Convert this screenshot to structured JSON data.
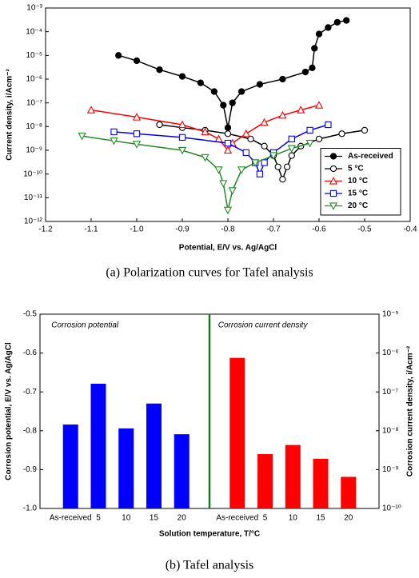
{
  "chart_data": [
    {
      "type": "scatter",
      "caption": "(a)  Polarization curves for Tafel analysis",
      "x_label": "Potential, E/V vs. Ag/AgCl",
      "y_label": "Current density, i/Acm⁻²",
      "xlim": [
        -1.2,
        -0.4
      ],
      "xticks": [
        -1.2,
        -1.1,
        {
          "value": -1.0,
          "label": "-1.0"
        },
        -0.9,
        -0.8,
        -0.7,
        -0.6,
        -0.5,
        -0.4
      ],
      "ylim": [
        1e-12,
        0.001
      ],
      "yscale": "log",
      "yticks": [
        {
          "value": 0.001,
          "label": "10⁻³"
        },
        {
          "value": 0.0001,
          "label": "10⁻⁴"
        },
        {
          "value": 1e-05,
          "label": "10⁻⁵"
        },
        {
          "value": 1e-06,
          "label": "10⁻⁶"
        },
        {
          "value": 1e-07,
          "label": "10⁻⁷"
        },
        {
          "value": 1e-08,
          "label": "10⁻⁸"
        },
        {
          "value": 1e-09,
          "label": "10⁻⁹"
        },
        {
          "value": 1e-10,
          "label": "10⁻¹⁰"
        },
        {
          "value": 1e-11,
          "label": "10⁻¹¹"
        },
        {
          "value": 1e-12,
          "label": "10⁻¹²"
        }
      ],
      "legend": "lower right",
      "series": [
        {
          "name": "As-received",
          "color": "#000000",
          "marker": "circle-filled",
          "x": [
            -1.04,
            -1.0,
            -0.95,
            -0.9,
            -0.86,
            -0.83,
            -0.81,
            -0.8,
            -0.79,
            -0.77,
            -0.73,
            -0.68,
            -0.63,
            -0.615,
            -0.61,
            -0.6,
            -0.58,
            -0.56,
            -0.54
          ],
          "values": [
            1e-05,
            6e-06,
            2.5e-06,
            1.3e-06,
            7e-07,
            3e-07,
            8e-08,
            9e-09,
            1e-07,
            3e-07,
            6e-07,
            1e-06,
            2e-06,
            3e-06,
            2e-05,
            8e-05,
            0.00015,
            0.00025,
            0.0003
          ]
        },
        {
          "name": "5 °C",
          "color": "#000000",
          "marker": "circle",
          "x": [
            -0.95,
            -0.9,
            -0.85,
            -0.8,
            -0.75,
            -0.72,
            -0.7,
            -0.69,
            -0.68,
            -0.67,
            -0.66,
            -0.64,
            -0.6,
            -0.55,
            -0.5
          ],
          "values": [
            1.2e-08,
            9e-09,
            7e-09,
            5e-09,
            3e-09,
            1.5e-09,
            6e-10,
            2e-10,
            6e-11,
            2e-10,
            6e-10,
            1.5e-09,
            3e-09,
            5e-09,
            7e-09
          ]
        },
        {
          "name": "10 °C",
          "color": "#ff0000",
          "marker": "triangle",
          "x": [
            -1.1,
            -1.0,
            -0.9,
            -0.85,
            -0.82,
            -0.8,
            -0.79,
            -0.76,
            -0.72,
            -0.68,
            -0.64,
            -0.6
          ],
          "values": [
            5e-08,
            2.5e-08,
            1.2e-08,
            6e-09,
            3e-09,
            1e-09,
            2e-09,
            5e-09,
            1.5e-08,
            3e-08,
            5e-08,
            8e-08
          ]
        },
        {
          "name": "15 °C",
          "color": "#0000ff",
          "marker": "square",
          "x": [
            -1.05,
            -1.0,
            -0.9,
            -0.8,
            -0.76,
            -0.74,
            -0.73,
            -0.72,
            -0.7,
            -0.66,
            -0.62,
            -0.58
          ],
          "values": [
            6e-09,
            5e-09,
            3.5e-09,
            2e-09,
            8e-10,
            3e-10,
            1e-10,
            3e-10,
            8e-10,
            3e-09,
            7e-09,
            1.2e-08
          ]
        },
        {
          "name": "20 °C",
          "color": "#228b22",
          "marker": "triangle-down",
          "x": [
            -1.12,
            -1.05,
            -1.0,
            -0.9,
            -0.85,
            -0.82,
            -0.81,
            -0.8,
            -0.79,
            -0.77,
            -0.74,
            -0.7,
            -0.66,
            -0.62
          ],
          "values": [
            4e-09,
            2.5e-09,
            1.8e-09,
            1e-09,
            5e-10,
            1.5e-10,
            4e-11,
            3e-12,
            2e-11,
            1.5e-10,
            3e-10,
            6e-10,
            1.2e-09,
            2e-09
          ]
        }
      ]
    },
    {
      "type": "bar",
      "caption": "(b)  Tafel analysis",
      "x_label": "Solution temperature, T/°C",
      "y_label": "Corrosion potential, E/V vs. Ag/AgCl",
      "y2_label": "Corrosion current density, i/Acm⁻²",
      "ylim": [
        -1.0,
        -0.5
      ],
      "yticks": [
        {
          "value": -1.0,
          "label": "-1.0"
        },
        -0.9,
        -0.8,
        -0.7,
        -0.6,
        -0.5
      ],
      "y2lim": [
        1e-10,
        1e-05
      ],
      "y2scale": "log",
      "y2ticks": [
        {
          "value": 1e-10,
          "label": "10⁻¹⁰"
        },
        {
          "value": 1e-09,
          "label": "10⁻⁹"
        },
        {
          "value": 1e-08,
          "label": "10⁻⁸"
        },
        {
          "value": 1e-07,
          "label": "10⁻⁷"
        },
        {
          "value": 1e-06,
          "label": "10⁻⁶"
        },
        {
          "value": 1e-05,
          "label": "10⁻⁵"
        }
      ],
      "divider_color": "#1a7a1a",
      "series": [
        {
          "name": "Corrosion potential",
          "color": "#0000ff",
          "categories": [
            "As-received",
            "5",
            "10",
            "15",
            "20"
          ],
          "values": [
            -0.784,
            -0.679,
            -0.794,
            -0.73,
            -0.809
          ]
        },
        {
          "name": "Corrosion current density",
          "color": "#ff0000",
          "axis": "y2",
          "categories": [
            "As-received",
            "5",
            "10",
            "15",
            "20"
          ],
          "values": [
            7.5e-07,
            2.5e-09,
            4.3e-09,
            1.9e-09,
            6.5e-10
          ]
        }
      ]
    }
  ]
}
